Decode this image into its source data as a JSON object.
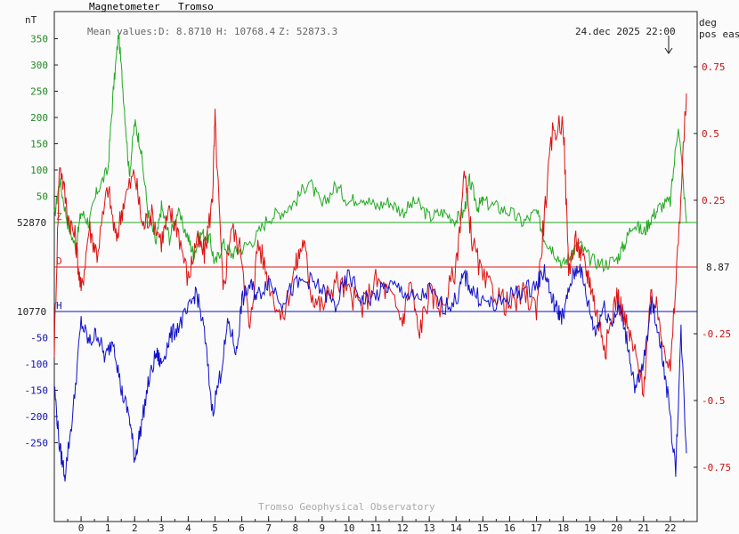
{
  "header": {
    "instrument": "Magnetometer",
    "station": "Tromso",
    "mean_label": "Mean values:",
    "mean_d": "D: 8.8710",
    "mean_h": "H: 10768.4",
    "mean_z": "Z: 52873.3",
    "timestamp": "24.dec 2025 22:00",
    "footer": "Tromso Geophysical Observatory"
  },
  "axes": {
    "left_unit": "nT",
    "right_unit_1": "deg",
    "right_unit_2": "pos east",
    "baseline_z": "52870",
    "baseline_h": "10770",
    "baseline_d": "8.87",
    "tag_z": "Z",
    "tag_d": "D",
    "tag_h": "H"
  },
  "colors": {
    "Z": "#22aa22",
    "D": "#dd1111",
    "H": "#1111cc",
    "left_ticks_pos": "#228822",
    "left_ticks_neg": "#1111aa",
    "right_ticks": "#cc1111"
  },
  "chart_data": {
    "type": "line",
    "x_ticks": [
      "0",
      "1",
      "2",
      "3",
      "4",
      "5",
      "6",
      "7",
      "8",
      "9",
      "10",
      "11",
      "12",
      "13",
      "14",
      "15",
      "16",
      "17",
      "18",
      "19",
      "20",
      "21",
      "22"
    ],
    "xlim": [
      -1,
      23
    ],
    "left_axis": {
      "unit": "nT",
      "ticks": [
        350,
        300,
        250,
        200,
        150,
        100,
        50,
        -50,
        -100,
        -150,
        -200,
        -250
      ],
      "z_baseline": 52870,
      "h_baseline": 10770
    },
    "right_axis": {
      "unit": "deg pos east",
      "ticks": [
        0.75,
        0.5,
        0.25,
        -0.25,
        -0.5,
        -0.75
      ],
      "d_baseline": 8.87
    },
    "series": [
      {
        "name": "Z",
        "baseline": 52870,
        "x": [
          -1,
          -0.8,
          -0.5,
          -0.2,
          0,
          0.3,
          0.6,
          1,
          1.2,
          1.4,
          1.6,
          1.8,
          2,
          2.2,
          2.5,
          2.8,
          3,
          3.3,
          3.6,
          4,
          4.2,
          4.5,
          4.8,
          5,
          5.3,
          5.6,
          6,
          6.5,
          7,
          7.5,
          8,
          8.5,
          9,
          9.5,
          10,
          10.5,
          11,
          11.5,
          12,
          12.5,
          13,
          13.5,
          14,
          14.3,
          14.5,
          14.8,
          15,
          15.5,
          16,
          16.5,
          17,
          17.3,
          17.6,
          18,
          18.3,
          18.6,
          19,
          19.5,
          20,
          20.3,
          20.6,
          21,
          21.3,
          21.6,
          22,
          22.3,
          22.6
        ],
        "values": [
          10,
          80,
          0,
          -50,
          20,
          0,
          60,
          100,
          250,
          360,
          230,
          90,
          190,
          150,
          20,
          -40,
          30,
          -30,
          20,
          -30,
          -60,
          -20,
          -30,
          -80,
          -40,
          -60,
          -50,
          -30,
          10,
          20,
          40,
          80,
          30,
          70,
          40,
          50,
          30,
          40,
          20,
          40,
          10,
          20,
          5,
          20,
          80,
          30,
          40,
          30,
          20,
          0,
          20,
          -30,
          -50,
          -80,
          -60,
          -40,
          -70,
          -80,
          -70,
          -40,
          0,
          -20,
          10,
          30,
          40,
          190,
          0
        ]
      },
      {
        "name": "D",
        "baseline": 8.87,
        "x": [
          -1,
          -0.8,
          -0.5,
          -0.2,
          0,
          0.3,
          0.6,
          1,
          1.3,
          1.6,
          2,
          2.3,
          2.6,
          3,
          3.3,
          3.6,
          4,
          4.3,
          4.6,
          4.9,
          5,
          5.3,
          5.6,
          6,
          6.3,
          6.6,
          7,
          7.5,
          8,
          8.3,
          8.6,
          9,
          9.5,
          10,
          10.5,
          11,
          11.5,
          12,
          12.3,
          12.6,
          13,
          13.5,
          14,
          14.3,
          14.6,
          15,
          15.5,
          16,
          16.5,
          17,
          17.3,
          17.6,
          18,
          18.2,
          18.5,
          18.8,
          19,
          19.3,
          19.6,
          20,
          20.3,
          20.6,
          21,
          21.3,
          21.6,
          22,
          22.3,
          22.6
        ],
        "values": [
          -0.3,
          0.4,
          0.2,
          0.1,
          -0.1,
          0.15,
          0.05,
          0.3,
          0.1,
          0.25,
          0.35,
          0.15,
          0.2,
          0.1,
          0.2,
          0.15,
          -0.05,
          0.1,
          0.05,
          0.25,
          0.55,
          -0.1,
          0.15,
          0.05,
          -0.25,
          0.1,
          -0.05,
          -0.2,
          0.0,
          0.1,
          -0.1,
          -0.15,
          -0.05,
          -0.1,
          -0.15,
          -0.05,
          -0.1,
          -0.2,
          -0.05,
          -0.25,
          -0.1,
          -0.15,
          0.0,
          0.35,
          0.1,
          -0.05,
          -0.1,
          -0.15,
          -0.1,
          -0.15,
          0.2,
          0.5,
          0.55,
          0.0,
          0.1,
          0.0,
          -0.05,
          -0.2,
          -0.3,
          -0.1,
          -0.2,
          -0.3,
          -0.45,
          -0.1,
          -0.2,
          -0.4,
          0.1,
          0.65
        ]
      },
      {
        "name": "H",
        "baseline": 10770,
        "x": [
          -1,
          -0.8,
          -0.6,
          -0.3,
          0,
          0.3,
          0.6,
          0.9,
          1.2,
          1.5,
          1.8,
          2,
          2.2,
          2.5,
          2.8,
          3,
          3.3,
          3.6,
          4,
          4.3,
          4.6,
          4.9,
          5.2,
          5.5,
          5.8,
          6,
          6.3,
          6.6,
          7,
          7.5,
          8,
          8.5,
          9,
          9.5,
          10,
          10.5,
          11,
          11.5,
          12,
          12.5,
          13,
          13.5,
          14,
          14.3,
          14.6,
          15,
          15.5,
          16,
          16.5,
          17,
          17.3,
          17.6,
          17.8,
          18,
          18.3,
          18.6,
          18.9,
          19.2,
          19.5,
          19.8,
          20.1,
          20.4,
          20.7,
          21,
          21.3,
          21.6,
          21.9,
          22.2,
          22.4,
          22.6
        ],
        "values": [
          -140,
          -260,
          -310,
          -190,
          -20,
          -60,
          -40,
          -90,
          -50,
          -150,
          -200,
          -280,
          -230,
          -140,
          -80,
          -100,
          -50,
          -30,
          0,
          40,
          -40,
          -190,
          -120,
          -20,
          -80,
          20,
          50,
          30,
          60,
          20,
          50,
          60,
          40,
          10,
          70,
          20,
          30,
          50,
          40,
          20,
          40,
          10,
          20,
          70,
          40,
          20,
          10,
          30,
          40,
          50,
          80,
          20,
          0,
          -10,
          60,
          90,
          20,
          -40,
          10,
          -20,
          10,
          -60,
          -150,
          -100,
          20,
          -50,
          -160,
          -300,
          -40,
          -270
        ]
      }
    ]
  }
}
